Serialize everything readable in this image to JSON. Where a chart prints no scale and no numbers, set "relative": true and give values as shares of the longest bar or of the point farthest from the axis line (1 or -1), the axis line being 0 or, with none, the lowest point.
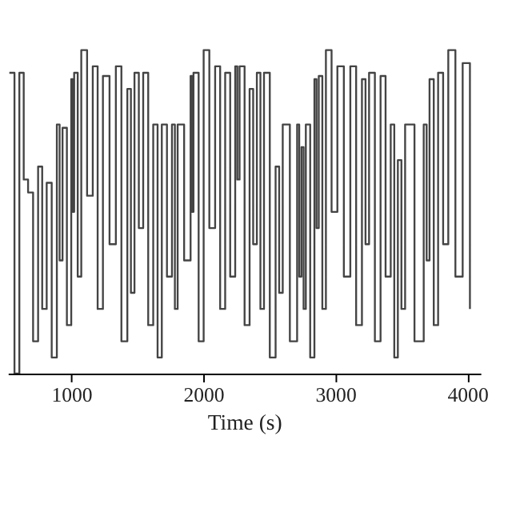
{
  "chart_data": {
    "type": "step",
    "xlabel": "Time (s)",
    "relative": true,
    "xlim": [
      520,
      4100
    ],
    "xticks": [
      1000,
      2000,
      3000,
      4000
    ],
    "grid": false,
    "series": [
      {
        "color": "#444444",
        "x": [
          531,
          570,
          607,
          640,
          673,
          711,
          749,
          780,
          814,
          852,
          891,
          912,
          934,
          967,
          1000,
          1011,
          1022,
          1049,
          1076,
          1120,
          1163,
          1200,
          1240,
          1290,
          1338,
          1380,
          1425,
          1452,
          1479,
          1512,
          1545,
          1583,
          1621,
          1654,
          1686,
          1725,
          1763,
          1785,
          1806,
          1855,
          1904,
          1915,
          1926,
          1965,
          2003,
          2046,
          2090,
          2128,
          2166,
          2204,
          2242,
          2258,
          2275,
          2313,
          2351,
          2378,
          2406,
          2433,
          2460,
          2504,
          2548,
          2575,
          2602,
          2656,
          2711,
          2727,
          2744,
          2760,
          2777,
          2810,
          2842,
          2858,
          2875,
          2902,
          2929,
          2972,
          3016,
          3065,
          3114,
          3158,
          3202,
          3229,
          3256,
          3300,
          3343,
          3381,
          3420,
          3447,
          3474,
          3501,
          3529,
          3600,
          3670,
          3692,
          3714,
          3746,
          3779,
          3817,
          3856,
          3910,
          3965,
          4020
        ],
        "values": [
          0.93,
          0.0,
          0.93,
          0.6,
          0.56,
          0.1,
          0.64,
          0.2,
          0.59,
          0.05,
          0.77,
          0.35,
          0.76,
          0.15,
          0.91,
          0.5,
          0.93,
          0.3,
          1.0,
          0.55,
          0.95,
          0.2,
          0.92,
          0.4,
          0.95,
          0.1,
          0.88,
          0.25,
          0.93,
          0.45,
          0.93,
          0.15,
          0.77,
          0.05,
          0.77,
          0.3,
          0.77,
          0.2,
          0.77,
          0.35,
          0.92,
          0.5,
          0.93,
          0.1,
          1.0,
          0.45,
          0.95,
          0.2,
          0.93,
          0.3,
          0.95,
          0.6,
          0.95,
          0.15,
          0.88,
          0.4,
          0.93,
          0.2,
          0.93,
          0.05,
          0.64,
          0.25,
          0.77,
          0.1,
          0.77,
          0.3,
          0.7,
          0.2,
          0.77,
          0.05,
          0.91,
          0.45,
          0.92,
          0.2,
          1.0,
          0.5,
          0.95,
          0.3,
          0.95,
          0.15,
          0.91,
          0.4,
          0.93,
          0.1,
          0.92,
          0.3,
          0.77,
          0.05,
          0.66,
          0.2,
          0.77,
          0.1,
          0.77,
          0.35,
          0.91,
          0.15,
          0.93,
          0.4,
          1.0,
          0.3,
          0.96,
          0.2
        ]
      }
    ]
  }
}
